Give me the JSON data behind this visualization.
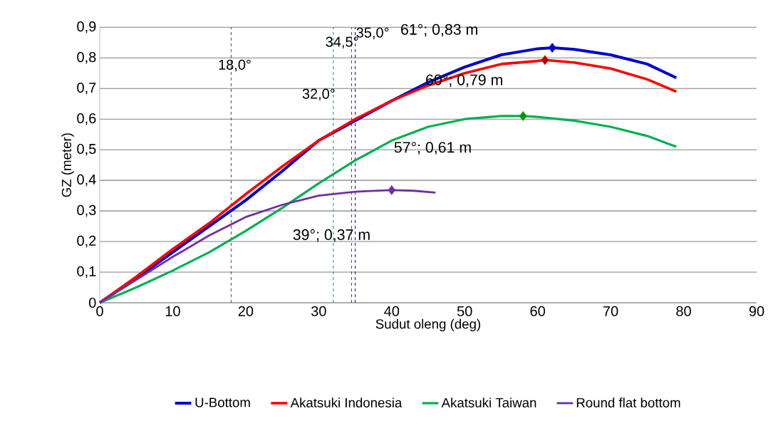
{
  "chart_data": {
    "type": "line",
    "xlabel": "Sudut oleng (deg)",
    "ylabel": "GZ (meter)",
    "xlim": [
      0,
      90
    ],
    "xticks": [
      0,
      10,
      20,
      30,
      40,
      50,
      60,
      70,
      80,
      90
    ],
    "ylim": [
      0,
      0.9
    ],
    "yticks": [
      {
        "value": 0,
        "label": "0"
      },
      {
        "value": 0.1,
        "label": "0,1"
      },
      {
        "value": 0.2,
        "label": "0,2"
      },
      {
        "value": 0.3,
        "label": "0,3"
      },
      {
        "value": 0.4,
        "label": "0,4"
      },
      {
        "value": 0.5,
        "label": "0,5"
      },
      {
        "value": 0.6,
        "label": "0,6"
      },
      {
        "value": 0.7,
        "label": "0,7"
      },
      {
        "value": 0.8,
        "label": "0,8"
      },
      {
        "value": 0.9,
        "label": "0,9"
      }
    ],
    "grid": "y",
    "legend": "bottom",
    "marker": "none",
    "line_style": "solid",
    "series": [
      {
        "name": "U-Bottom",
        "color": "#0000cc",
        "x": [
          0,
          5,
          10,
          15,
          20,
          25,
          30,
          35,
          40,
          45,
          50,
          55,
          60,
          62,
          65,
          70,
          75,
          79
        ],
        "values": [
          0,
          0.08,
          0.165,
          0.25,
          0.335,
          0.43,
          0.53,
          0.595,
          0.66,
          0.72,
          0.77,
          0.81,
          0.83,
          0.833,
          0.828,
          0.81,
          0.78,
          0.735
        ]
      },
      {
        "name": "Akatsuki Indonesia",
        "color": "#ff0000",
        "x": [
          0,
          5,
          10,
          15,
          20,
          25,
          30,
          35,
          40,
          45,
          50,
          55,
          60,
          61,
          65,
          70,
          75,
          79
        ],
        "values": [
          0,
          0.085,
          0.175,
          0.26,
          0.355,
          0.445,
          0.53,
          0.6,
          0.66,
          0.71,
          0.75,
          0.78,
          0.79,
          0.793,
          0.785,
          0.765,
          0.73,
          0.69
        ]
      },
      {
        "name": "Akatsuki Taiwan",
        "color": "#00b050",
        "x": [
          0,
          5,
          10,
          15,
          20,
          25,
          30,
          35,
          40,
          45,
          50,
          55,
          58,
          60,
          65,
          70,
          75,
          79
        ],
        "values": [
          0,
          0.05,
          0.105,
          0.165,
          0.235,
          0.31,
          0.39,
          0.465,
          0.53,
          0.575,
          0.6,
          0.61,
          0.61,
          0.607,
          0.595,
          0.575,
          0.545,
          0.51
        ]
      },
      {
        "name": "Round flat bottom",
        "color": "#7030a0",
        "x": [
          0,
          5,
          10,
          15,
          20,
          25,
          30,
          35,
          40,
          43,
          46
        ],
        "values": [
          0,
          0.075,
          0.15,
          0.22,
          0.28,
          0.32,
          0.35,
          0.363,
          0.368,
          0.366,
          0.36
        ]
      },
      {
        "type": "scatter",
        "marker": "diamond",
        "x": [
          62,
          61,
          58,
          40
        ],
        "values": [
          0.833,
          0.793,
          0.61,
          0.368
        ],
        "colors": [
          "#0000cc",
          "#c00000",
          "#009900",
          "#7030a0"
        ]
      }
    ],
    "ref_lines": [
      {
        "axis": "x",
        "value": 18,
        "label": "18,0°",
        "color": "#7030a0",
        "line_style": "dashed"
      },
      {
        "axis": "x",
        "value": 32,
        "label": "32,0°",
        "color": "#00b050",
        "line_style": "dashed"
      },
      {
        "axis": "x",
        "value": 34.5,
        "label": "34,5°",
        "color": "#ff0000",
        "line_style": "dashed"
      },
      {
        "axis": "x",
        "value": 35,
        "label": "35,0°",
        "color": "#0000ff",
        "line_style": "dashed"
      }
    ],
    "annotations": [
      "61°; 0,83 m",
      "60°; 0,79 m",
      "57°; 0,61 m",
      "39°; 0,37 m"
    ]
  }
}
